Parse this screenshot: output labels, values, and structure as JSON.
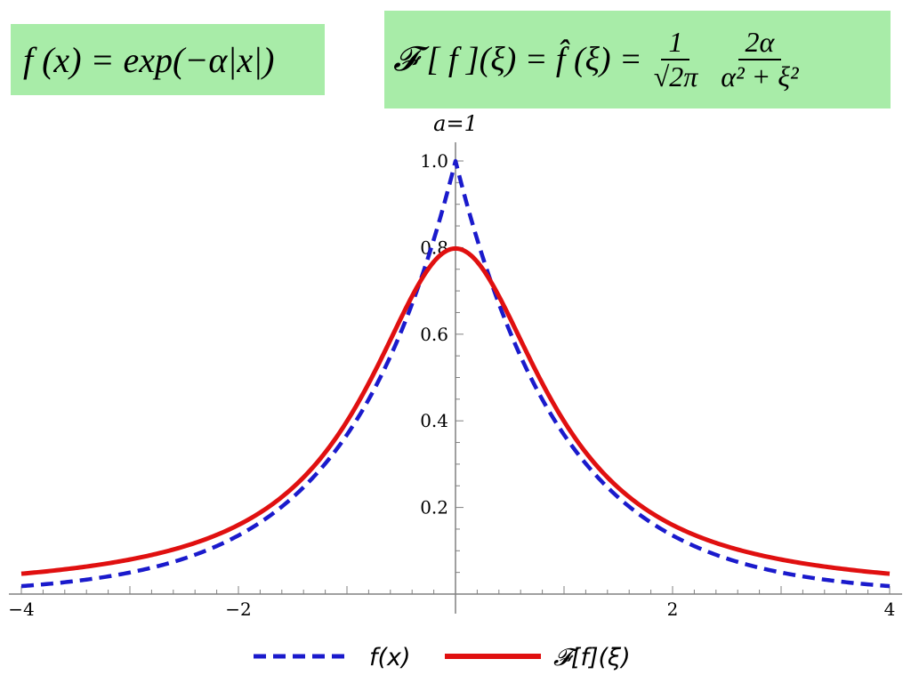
{
  "formulas": {
    "time_domain": "f (x) = exp(−α|x|)",
    "fourier_lhs": "𝓕 [ f ](ξ) = f̂ (ξ) =",
    "fourier_frac1_num": "1",
    "fourier_frac1_den": "√2π",
    "fourier_frac2_num": "2α",
    "fourier_frac2_den": "α² + ξ²"
  },
  "colors": {
    "formula_bg": "#a8eca8",
    "series_f": "#1a1acc",
    "series_F": "#e01010",
    "axis": "#808080"
  },
  "chart_data": {
    "type": "line",
    "title": "a=1",
    "xlabel": "",
    "ylabel": "",
    "xlim": [
      -4,
      4
    ],
    "ylim": [
      0,
      1.05
    ],
    "x_ticks": [
      "−4",
      "−2",
      "2",
      "4"
    ],
    "y_ticks": [
      "0.2",
      "0.4",
      "0.6",
      "0.8",
      "1.0"
    ],
    "grid": false,
    "legend_position": "bottom",
    "series": [
      {
        "name": "f(x)",
        "style": "dashed",
        "x": [
          -4.0,
          -3.5,
          -3.0,
          -2.5,
          -2.0,
          -1.5,
          -1.0,
          -0.75,
          -0.5,
          -0.25,
          0.0,
          0.25,
          0.5,
          0.75,
          1.0,
          1.5,
          2.0,
          2.5,
          3.0,
          3.5,
          4.0
        ],
        "y": [
          0.018,
          0.03,
          0.05,
          0.082,
          0.135,
          0.223,
          0.368,
          0.472,
          0.607,
          0.779,
          1.0,
          0.779,
          0.607,
          0.472,
          0.368,
          0.223,
          0.135,
          0.082,
          0.05,
          0.03,
          0.018
        ]
      },
      {
        "name": "𝓕[f](ξ)",
        "style": "solid",
        "x": [
          -4.0,
          -3.5,
          -3.0,
          -2.5,
          -2.0,
          -1.5,
          -1.0,
          -0.75,
          -0.5,
          -0.25,
          0.0,
          0.25,
          0.5,
          0.75,
          1.0,
          1.5,
          2.0,
          2.5,
          3.0,
          3.5,
          4.0
        ],
        "y": [
          0.047,
          0.061,
          0.08,
          0.11,
          0.16,
          0.245,
          0.399,
          0.511,
          0.638,
          0.751,
          0.798,
          0.751,
          0.638,
          0.511,
          0.399,
          0.245,
          0.16,
          0.11,
          0.08,
          0.061,
          0.047
        ]
      }
    ]
  }
}
